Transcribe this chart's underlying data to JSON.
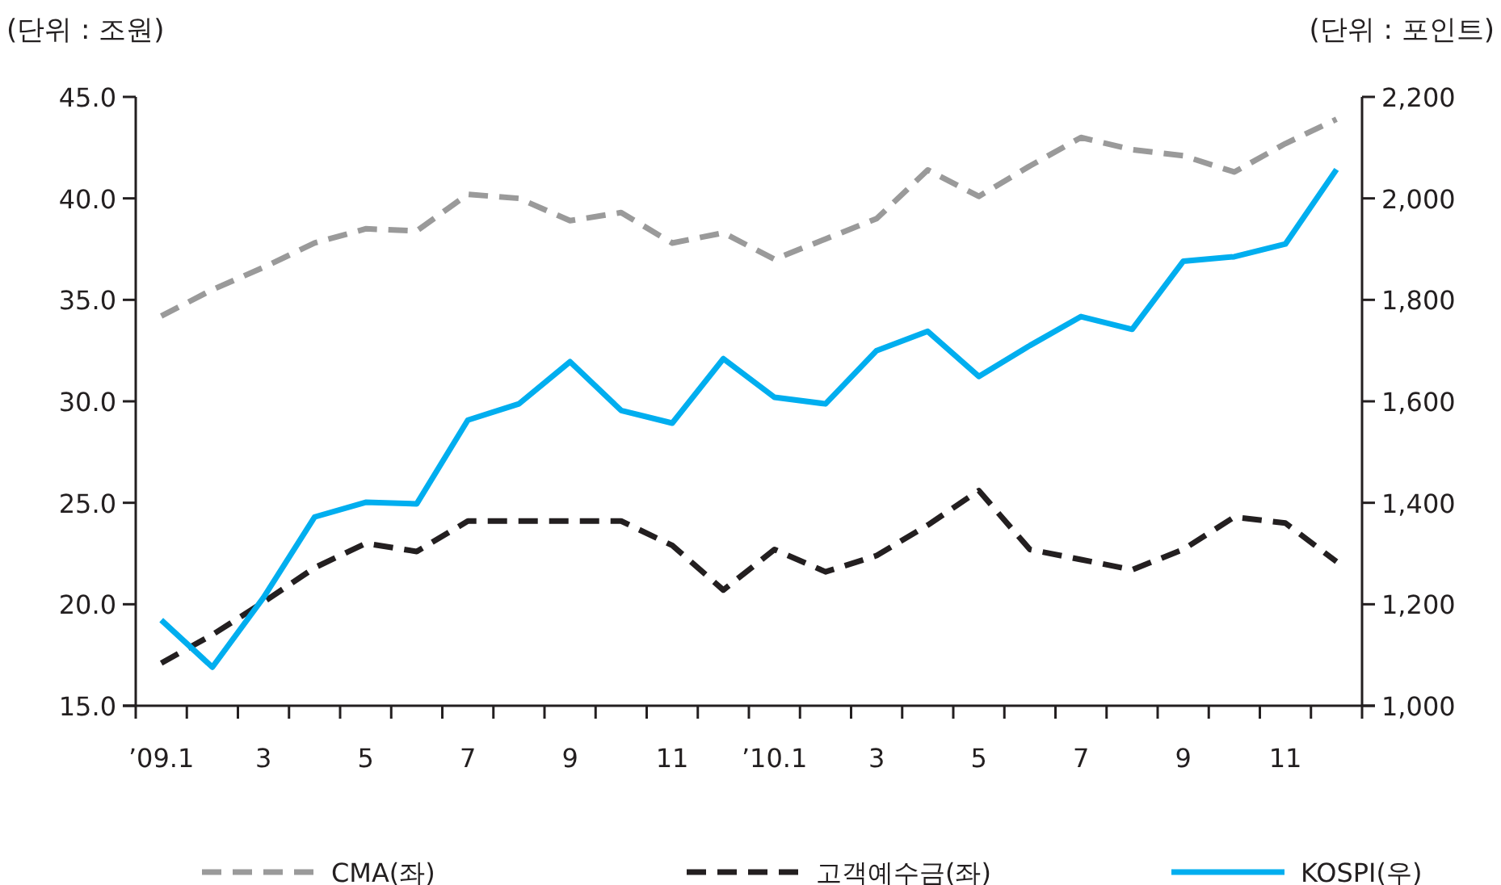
{
  "chart_data": {
    "type": "line",
    "ylabel": "(단위 : 조원)",
    "y2label": "(단위 : 포인트)",
    "categories": [
      "’09.1",
      null,
      "3",
      null,
      "5",
      null,
      "7",
      null,
      "9",
      null,
      "11",
      null,
      "’10.1",
      null,
      "3",
      null,
      "5",
      null,
      "7",
      null,
      "9",
      null,
      "11",
      null
    ],
    "series": [
      {
        "name": "CMA(좌)",
        "color": "#9a9a9a",
        "line_style": "dashed",
        "axis": "y",
        "values": [
          34.2,
          35.5,
          36.6,
          37.8,
          38.5,
          38.4,
          40.2,
          40.0,
          38.9,
          39.3,
          37.8,
          38.3,
          37.0,
          38.0,
          39.0,
          41.4,
          40.1,
          41.6,
          43.0,
          42.4,
          42.1,
          41.3,
          42.7,
          43.9
        ]
      },
      {
        "name": "고객예수금(좌)",
        "color": "#231f20",
        "line_style": "dashed",
        "axis": "y",
        "values": [
          17.1,
          18.5,
          20.1,
          21.8,
          23.0,
          22.6,
          24.1,
          24.1,
          24.1,
          24.1,
          22.9,
          20.7,
          22.7,
          21.6,
          22.4,
          23.9,
          25.6,
          22.7,
          22.2,
          21.7,
          22.7,
          24.3,
          24.0,
          22.1
        ]
      },
      {
        "name": "KOSPI(우)",
        "color": "#00aeef",
        "line_style": "solid",
        "axis": "y2",
        "values": [
          1169,
          1076,
          1213,
          1372,
          1401,
          1398,
          1563,
          1595,
          1678,
          1582,
          1557,
          1684,
          1608,
          1595,
          1700,
          1738,
          1649,
          1710,
          1767,
          1742,
          1876,
          1885,
          1910,
          2057
        ]
      }
    ],
    "ylim": [
      15,
      45
    ],
    "yticks": [
      {
        "value": 15,
        "label": "15.0"
      },
      {
        "value": 20,
        "label": "20.0"
      },
      {
        "value": 25,
        "label": "25.0"
      },
      {
        "value": 30,
        "label": "30.0"
      },
      {
        "value": 35,
        "label": "35.0"
      },
      {
        "value": 40,
        "label": "40.0"
      },
      {
        "value": 45,
        "label": "45.0"
      }
    ],
    "y2lim": [
      1000,
      2200
    ],
    "y2ticks": [
      {
        "value": 1000,
        "label": "1,000"
      },
      {
        "value": 1200,
        "label": "1,200"
      },
      {
        "value": 1400,
        "label": "1,400"
      },
      {
        "value": 1600,
        "label": "1,600"
      },
      {
        "value": 1800,
        "label": "1,800"
      },
      {
        "value": 2000,
        "label": "2,000"
      },
      {
        "value": 2200,
        "label": "2,200"
      }
    ],
    "legend": "bottom"
  }
}
